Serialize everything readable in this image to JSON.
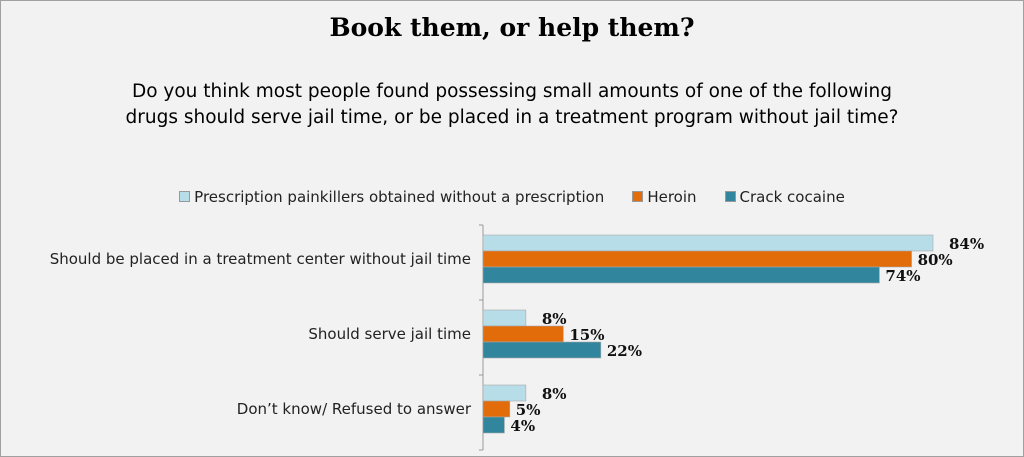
{
  "chart_data": {
    "type": "bar",
    "orientation": "horizontal",
    "title": "Book them, or help them?",
    "subtitle_lines": [
      "Do you think most people found possessing small amounts of one of the following",
      "drugs should serve jail time, or be placed in a treatment program without jail time?"
    ],
    "categories": [
      "Should be placed in a treatment center without jail time",
      "Should serve jail time",
      "Don’t know/ Refused to answer"
    ],
    "series": [
      {
        "name": "Prescription painkillers obtained without a prescription",
        "color": "#b7dde8",
        "values": [
          84,
          8,
          8
        ]
      },
      {
        "name": "Heroin",
        "color": "#e36c0a",
        "values": [
          80,
          15,
          5
        ]
      },
      {
        "name": "Crack cocaine",
        "color": "#31859c",
        "values": [
          74,
          22,
          4
        ]
      }
    ],
    "value_suffix": "%",
    "xlim": [
      0,
      100
    ],
    "legend_position": "top",
    "grid": false
  }
}
